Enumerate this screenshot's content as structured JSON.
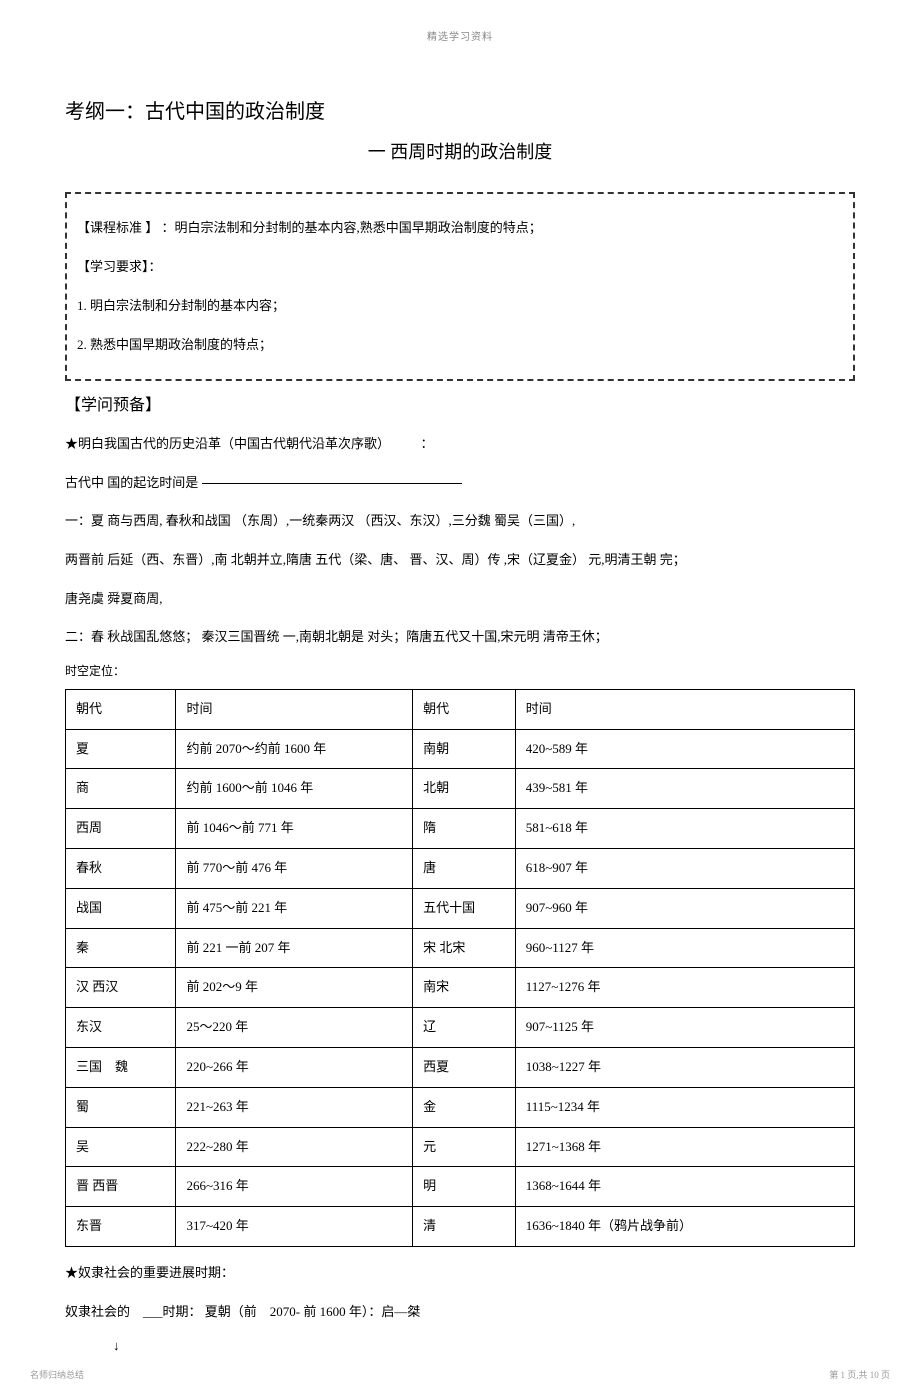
{
  "header": {
    "top_text": "精选学习资料"
  },
  "titles": {
    "main": "考纲一：古代中国的政治制度",
    "sub": "一 西周时期的政治制度"
  },
  "standard_box": {
    "line1_label": "【课程标准 】",
    "line1_text": "：明白宗法制和分封制的基本内容,熟悉中国早期政治制度的特点；",
    "line2": "【学习要求】：",
    "line3": "1. 明白宗法制和分封制的基本内容；",
    "line4": "2. 熟悉中国早期政治制度的特点；"
  },
  "prep": {
    "heading": "【学问预备】",
    "star1": "★明白我国古代的历史沿革（中国古代朝代沿革次序歌）",
    "colon": "：",
    "qiexian_label": "古代中 国的起讫时间是",
    "verse1": "一：夏 商与西周, 春秋和战国 （东周）,一统秦两汉 （西汉、东汉）,三分魏 蜀吴（三国）,",
    "verse2": "两晋前 后延（西、东晋）,南 北朝并立,隋唐 五代（梁、唐、 晋、汉、周）传 ,宋（辽夏金） 元,明清王朝 完；",
    "verse3": "唐尧虞 舜夏商周,",
    "verse4": "二：春 秋战国乱悠悠； 秦汉三国晋统 一,南朝北朝是 对头；隋唐五代又十国,宋元明 清帝王休；",
    "positioning_label": "时空定位："
  },
  "table": {
    "headers": {
      "col1": "朝代",
      "col2": "时间",
      "col3": "朝代",
      "col4": "时间"
    },
    "rows": [
      {
        "c1": "夏",
        "c2": "约前 2070～约前 1600 年",
        "c3": "南朝",
        "c4": "420~589 年"
      },
      {
        "c1": "商",
        "c2": "约前 1600～前 1046 年",
        "c3": "北朝",
        "c4": "439~581 年"
      },
      {
        "c1": "西周",
        "c2": "前 1046～前 771 年",
        "c3": "隋",
        "c4": "581~618 年"
      },
      {
        "c1": "春秋",
        "c2": "前 770～前 476 年",
        "c3": "唐",
        "c4": "618~907 年"
      },
      {
        "c1": "战国",
        "c2": "前 475～前 221 年",
        "c3": "五代十国",
        "c4": "907~960 年"
      },
      {
        "c1": "秦",
        "c2": "前 221 一前 207 年",
        "c3": "宋 北宋",
        "c4": "960~1127 年"
      },
      {
        "c1": "汉 西汉",
        "c2": "前 202～9 年",
        "c3": "南宋",
        "c4": "1127~1276 年"
      },
      {
        "c1": "东汉",
        "c2": "25～220 年",
        "c3": "辽",
        "c4": "907~1125 年"
      },
      {
        "c1": "三国　魏",
        "c2": "220~266 年",
        "c3": "西夏",
        "c4": "1038~1227 年"
      },
      {
        "c1": "蜀",
        "c2": "221~263 年",
        "c3": "金",
        "c4": "1115~1234 年"
      },
      {
        "c1": "吴",
        "c2": "222~280 年",
        "c3": "元",
        "c4": "1271~1368 年"
      },
      {
        "c1": "晋 西晋",
        "c2": "266~316 年",
        "c3": "明",
        "c4": "1368~1644 年"
      },
      {
        "c1": "东晋",
        "c2": "317~420 年",
        "c3": "清",
        "c4": "1636~1840 年（鸦片战争前）"
      }
    ]
  },
  "slave": {
    "star": "★奴隶社会的重要进展时期：",
    "line": "奴隶社会的　___时期： 夏朝（前　2070- 前 1600 年）：启—桀",
    "arrow": "↓"
  },
  "footer": {
    "left": "名师归纳总结",
    "right": "第 1 页,共 10 页"
  }
}
